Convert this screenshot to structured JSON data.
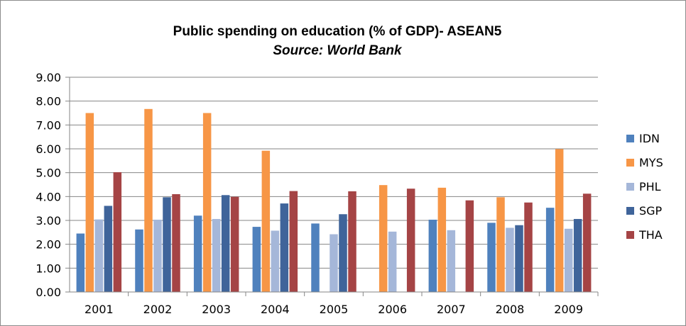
{
  "chart_data": {
    "type": "bar",
    "title": "Public spending on education (% of GDP)- ASEAN5",
    "subtitle": "Source: World Bank",
    "xlabel": "",
    "ylabel": "",
    "ylim": [
      0,
      9
    ],
    "yticks": [
      "0.00",
      "1.00",
      "2.00",
      "3.00",
      "4.00",
      "5.00",
      "6.00",
      "7.00",
      "8.00",
      "9.00"
    ],
    "grid": true,
    "legend_position": "right",
    "categories": [
      "2001",
      "2002",
      "2003",
      "2004",
      "2005",
      "2006",
      "2007",
      "2008",
      "2009"
    ],
    "series": [
      {
        "name": "IDN",
        "color": "#4f81bd",
        "values": [
          2.45,
          2.62,
          3.2,
          2.73,
          2.87,
          null,
          3.03,
          2.9,
          3.53
        ]
      },
      {
        "name": "MYS",
        "color": "#f79646",
        "values": [
          7.5,
          7.67,
          7.5,
          5.92,
          null,
          4.48,
          4.37,
          3.97,
          5.99
        ]
      },
      {
        "name": "PHL",
        "color": "#a5b7d9",
        "values": [
          3.04,
          3.03,
          3.06,
          2.57,
          2.42,
          2.53,
          2.59,
          2.69,
          2.65
        ]
      },
      {
        "name": "SGP",
        "color": "#3f649a",
        "values": [
          3.61,
          3.97,
          4.06,
          3.71,
          3.26,
          null,
          null,
          2.8,
          3.06
        ]
      },
      {
        "name": "THA",
        "color": "#a54445",
        "values": [
          5.02,
          4.1,
          3.99,
          4.23,
          4.22,
          4.33,
          3.84,
          3.75,
          4.12
        ]
      }
    ]
  }
}
